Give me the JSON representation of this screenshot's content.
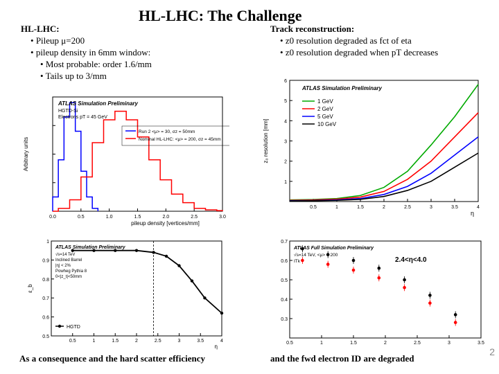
{
  "title": "HL-LHC: The Challenge",
  "left": {
    "head": "HL-LHC:",
    "items": [
      "Pileup μ=200",
      "pileup density in 6mm window:"
    ],
    "subitems": [
      "Most probable: order 1.6/mm",
      "Tails up to 3/mm"
    ]
  },
  "right": {
    "head": "Track reconstruction:",
    "items": [
      "z0 resolution degraded as fct of eta",
      "z0 resolution degraded when pT decreases"
    ]
  },
  "caption_left": "As a consequence and the hard scatter efficiency",
  "caption_right": "and the fwd electron ID are degraded",
  "pagenum": "2",
  "eta_label": "2.4<η<4.0",
  "chart1": {
    "type": "hist_step",
    "atlas_label": "ATLAS Simulation Preliminary",
    "sublabel": "HGTD-Si",
    "subsub": "Electrons pT = 45 GeV",
    "legend": [
      {
        "label": "Run 2 <μ> = 30,  σz = 50mm",
        "color": "#0000ff"
      },
      {
        "label": "Nominal HL-LHC: <μ> = 200,  σz = 45mm",
        "color": "#ff0000"
      }
    ],
    "ylabel": "Arbitrary units",
    "xlabel": "pileup density [vertices/mm]",
    "xlim": [
      0,
      3.0
    ],
    "ylim": [
      0,
      0.04
    ],
    "blue_bins": {
      "x": [
        0,
        0.1,
        0.2,
        0.3,
        0.4,
        0.5,
        0.6,
        0.7,
        0.8
      ],
      "y": [
        0.005,
        0.018,
        0.033,
        0.038,
        0.028,
        0.014,
        0.005,
        0.001
      ]
    },
    "red_bins": {
      "x": [
        0,
        0.1,
        0.3,
        0.5,
        0.7,
        0.9,
        1.1,
        1.3,
        1.5,
        1.7,
        1.9,
        2.1,
        2.3,
        2.5,
        2.7,
        2.9,
        3.0
      ],
      "y": [
        0,
        0.001,
        0.004,
        0.012,
        0.024,
        0.032,
        0.035,
        0.032,
        0.026,
        0.018,
        0.011,
        0.006,
        0.003,
        0.001,
        0.0005,
        0.0002
      ]
    },
    "axis_color": "#000000",
    "background_color": "#ffffff"
  },
  "chart2": {
    "type": "line",
    "atlas_label": "ATLAS Simulation Preliminary",
    "legend": [
      {
        "label": "1 GeV",
        "color": "#00aa00"
      },
      {
        "label": "2 GeV",
        "color": "#ff0000"
      },
      {
        "label": "5 GeV",
        "color": "#0000ff"
      },
      {
        "label": "10 GeV",
        "color": "#000000"
      }
    ],
    "ylabel": "z₀ resolution [mm]",
    "xlabel": "η",
    "xlim": [
      0,
      4.0
    ],
    "ylim": [
      0,
      6
    ],
    "series": {
      "1GeV": {
        "x": [
          0,
          0.5,
          1.0,
          1.5,
          2.0,
          2.5,
          3.0,
          3.5,
          4.0
        ],
        "y": [
          0.08,
          0.1,
          0.15,
          0.3,
          0.7,
          1.5,
          2.8,
          4.2,
          5.8
        ],
        "color": "#00aa00"
      },
      "2GeV": {
        "x": [
          0,
          0.5,
          1.0,
          1.5,
          2.0,
          2.5,
          3.0,
          3.5,
          4.0
        ],
        "y": [
          0.06,
          0.08,
          0.12,
          0.22,
          0.5,
          1.1,
          2.0,
          3.2,
          4.4
        ],
        "color": "#ff0000"
      },
      "5GeV": {
        "x": [
          0,
          0.5,
          1.0,
          1.5,
          2.0,
          2.5,
          3.0,
          3.5,
          4.0
        ],
        "y": [
          0.04,
          0.05,
          0.08,
          0.15,
          0.35,
          0.75,
          1.4,
          2.3,
          3.2
        ],
        "color": "#0000ff"
      },
      "10GeV": {
        "x": [
          0,
          0.5,
          1.0,
          1.5,
          2.0,
          2.5,
          3.0,
          3.5,
          4.0
        ],
        "y": [
          0.03,
          0.04,
          0.06,
          0.11,
          0.25,
          0.55,
          1.0,
          1.7,
          2.4
        ],
        "color": "#000000"
      }
    },
    "xticks": [
      0.5,
      1.0,
      1.5,
      2.0,
      2.5,
      3.0,
      3.5,
      4.0
    ],
    "yticks": [
      1,
      2,
      3,
      4,
      5,
      6
    ]
  },
  "chart3": {
    "type": "line",
    "atlas_label": "ATLAS Simulation Preliminary",
    "text_lines": [
      "√s=14 TeV",
      "Inclined Barrel",
      "|η| < 2%",
      "Powheg Pythia 8",
      "0<|z_t|<50mm"
    ],
    "legend_item": "HGTD",
    "ylabel": "ε_b",
    "xlabel": "η",
    "xlim": [
      0,
      4.0
    ],
    "ylim": [
      0.5,
      1.0
    ],
    "x": [
      0.5,
      1.0,
      1.5,
      2.0,
      2.4,
      2.7,
      3.0,
      3.3,
      3.6,
      4.0
    ],
    "y": [
      0.95,
      0.95,
      0.95,
      0.95,
      0.94,
      0.92,
      0.87,
      0.79,
      0.7,
      0.62
    ],
    "xticks": [
      0.5,
      1.0,
      1.5,
      2.0,
      2.5,
      3.0,
      3.5,
      4.0
    ],
    "yticks": [
      0.5,
      0.6,
      0.7,
      0.8,
      0.9,
      1.0
    ],
    "vline1": 2.4,
    "vline2": 4.0,
    "line_color": "#000000"
  },
  "chart4": {
    "type": "scatter",
    "atlas_label": "ATLAS Full Simulation Preliminary",
    "text_lines": [
      "√s=14 TeV, <μ> = 200",
      "ITk"
    ],
    "xlim": [
      0.5,
      3.5
    ],
    "ylim": [
      0.2,
      0.7
    ],
    "xticks": [
      0.5,
      1.0,
      1.5,
      2.0,
      2.5,
      3.0,
      3.5
    ],
    "yticks": [
      0.3,
      0.4,
      0.5,
      0.6,
      0.7
    ],
    "series1": {
      "x": [
        0.7,
        1.1,
        1.5,
        1.9,
        2.3,
        2.7,
        3.1
      ],
      "y": [
        0.66,
        0.63,
        0.6,
        0.56,
        0.5,
        0.42,
        0.32
      ],
      "color": "#000000"
    },
    "series2": {
      "x": [
        0.7,
        1.1,
        1.5,
        1.9,
        2.3,
        2.7,
        3.1
      ],
      "y": [
        0.6,
        0.58,
        0.55,
        0.51,
        0.46,
        0.38,
        0.28
      ],
      "color": "#ff0000"
    }
  }
}
